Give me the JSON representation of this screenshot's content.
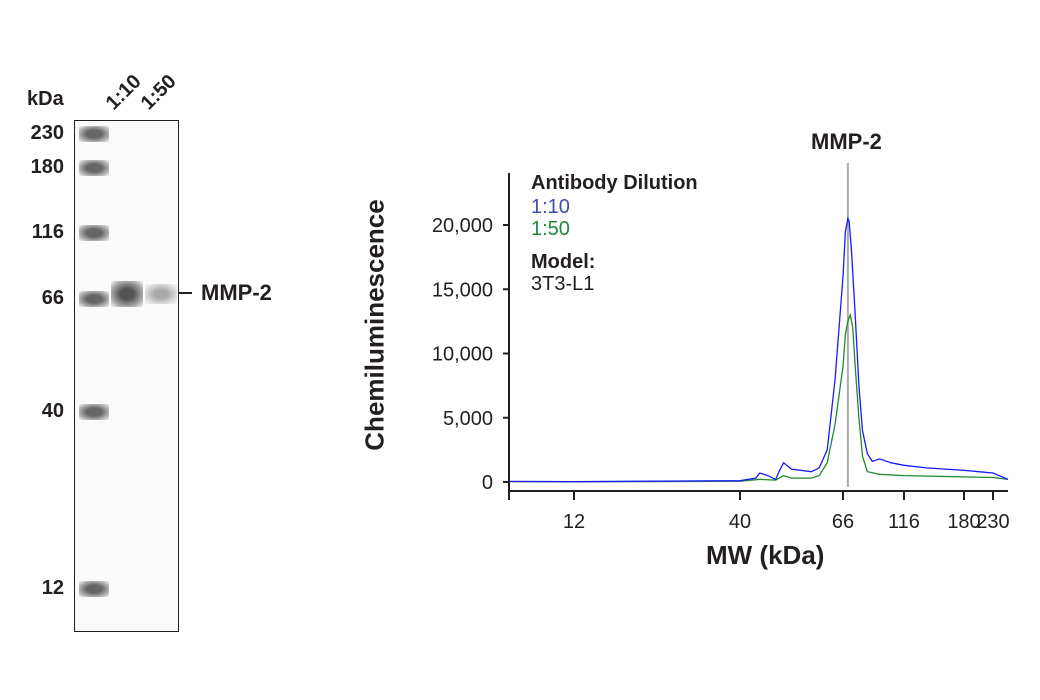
{
  "blot": {
    "unit_label": "kDa",
    "lanes": [
      "1:10",
      "1:50"
    ],
    "markers": [
      "230",
      "180",
      "116",
      "66",
      "40",
      "12"
    ],
    "band_label": "MMP-2"
  },
  "chart_data": {
    "type": "line",
    "title": "MMP-2",
    "xlabel": "MW (kDa)",
    "ylabel": "Chemiluminescence",
    "xticks": [
      12,
      40,
      66,
      116,
      180,
      230
    ],
    "yticks": [
      0,
      5000,
      10000,
      15000,
      20000
    ],
    "ytick_labels": [
      "0",
      "5,000",
      "10,000",
      "15,000",
      "20,000"
    ],
    "xlim": [
      1,
      256
    ],
    "ylim": [
      0,
      24000
    ],
    "marker_line_x": 70,
    "legend": {
      "title": "Antibody Dilution",
      "model_title": "Model:",
      "model": "3T3-L1",
      "position": "top-left"
    },
    "series": [
      {
        "name": "1:10",
        "color": "#1a1aff",
        "x": [
          1,
          12,
          30,
          40,
          44,
          45,
          47,
          49,
          50,
          51,
          53,
          58,
          60,
          62,
          64,
          66,
          68,
          70,
          71,
          73,
          76,
          79,
          82,
          86,
          90,
          96,
          105,
          116,
          140,
          180,
          205,
          230,
          256
        ],
        "y": [
          50,
          20,
          80,
          100,
          300,
          700,
          500,
          200,
          900,
          1500,
          1000,
          800,
          1100,
          2500,
          8000,
          16000,
          19500,
          20500,
          20300,
          18000,
          13000,
          7500,
          4000,
          2200,
          1600,
          1800,
          1500,
          1300,
          1100,
          900,
          800,
          700,
          200
        ]
      },
      {
        "name": "1:50",
        "color": "#1f8a2e",
        "x": [
          1,
          12,
          30,
          40,
          45,
          49,
          51,
          53,
          58,
          60,
          62,
          64,
          66,
          68,
          70,
          72,
          74,
          76,
          79,
          82,
          86,
          96,
          116,
          180,
          230,
          256
        ],
        "y": [
          30,
          20,
          40,
          60,
          200,
          150,
          500,
          300,
          300,
          500,
          1500,
          4500,
          9000,
          11500,
          12500,
          13000,
          12000,
          9000,
          5000,
          2000,
          800,
          600,
          500,
          400,
          350,
          200
        ]
      }
    ]
  }
}
